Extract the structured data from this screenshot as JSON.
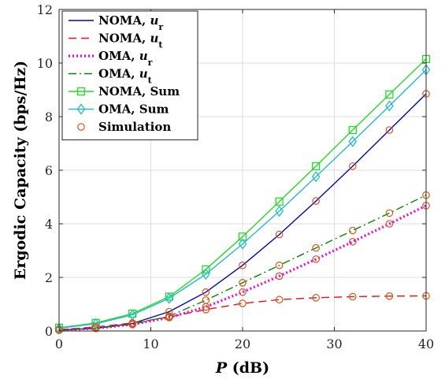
{
  "chart_data": {
    "type": "line",
    "xlabel": "P (dB)",
    "xlabel_parts": {
      "symbol": "P",
      "unit": " (dB)"
    },
    "ylabel": "Ergodic Capacity (bps/Hz)",
    "xlim": [
      0,
      40
    ],
    "ylim": [
      0,
      12
    ],
    "x_ticks": [
      0,
      10,
      20,
      30,
      40
    ],
    "y_ticks": [
      0,
      2,
      4,
      6,
      8,
      10,
      12
    ],
    "grid": true,
    "legend_position": "top-left",
    "series": [
      {
        "name": "NOMA, u_r",
        "label_prefix": "NOMA, ",
        "label_sym": "u",
        "label_sub": "r",
        "color": "#0000cc",
        "dash": "",
        "marker": "none",
        "x": [
          0,
          4,
          8,
          12,
          16,
          20,
          24,
          28,
          32,
          36,
          40
        ],
        "y": [
          0.03,
          0.1,
          0.28,
          0.72,
          1.45,
          2.45,
          3.6,
          4.85,
          6.15,
          7.5,
          8.85
        ]
      },
      {
        "name": "NOMA, u_t",
        "label_prefix": "NOMA, ",
        "label_sym": "u",
        "label_sub": "t",
        "color": "#ee1111",
        "dash": "10,6",
        "marker": "none",
        "x": [
          0,
          4,
          8,
          12,
          16,
          20,
          24,
          28,
          32,
          36,
          40
        ],
        "y": [
          0.05,
          0.15,
          0.3,
          0.52,
          0.8,
          1.03,
          1.17,
          1.24,
          1.28,
          1.3,
          1.31
        ]
      },
      {
        "name": "OMA, u_r",
        "label_prefix": "OMA, ",
        "label_sym": "u",
        "label_sub": "r",
        "color": "#ee00ee",
        "dash": "2,3",
        "width": 3.2,
        "marker": "none",
        "x": [
          0,
          4,
          8,
          12,
          16,
          20,
          24,
          28,
          32,
          36,
          40
        ],
        "y": [
          0.03,
          0.1,
          0.24,
          0.5,
          0.9,
          1.45,
          2.05,
          2.68,
          3.33,
          4.0,
          4.68
        ]
      },
      {
        "name": "OMA, u_t",
        "label_prefix": "OMA, ",
        "label_sym": "u",
        "label_sub": "t",
        "color": "#008800",
        "dash": "10,4,2,4",
        "marker": "none",
        "x": [
          0,
          4,
          8,
          12,
          16,
          20,
          24,
          28,
          32,
          36,
          40
        ],
        "y": [
          0.03,
          0.1,
          0.25,
          0.55,
          1.15,
          1.8,
          2.45,
          3.1,
          3.75,
          4.4,
          5.07
        ]
      },
      {
        "name": "NOMA, Sum",
        "label_prefix": "NOMA, Sum",
        "label_sym": "",
        "label_sub": "",
        "color": "#22dd22",
        "dash": "",
        "marker": "square",
        "x": [
          0,
          4,
          8,
          12,
          16,
          20,
          24,
          28,
          32,
          36,
          40
        ],
        "y": [
          0.12,
          0.3,
          0.65,
          1.28,
          2.3,
          3.52,
          4.83,
          6.15,
          7.5,
          8.83,
          10.15
        ]
      },
      {
        "name": "OMA, Sum",
        "label_prefix": "OMA, Sum",
        "label_sym": "",
        "label_sub": "",
        "color": "#22bbcc",
        "dash": "",
        "marker": "diamond",
        "x": [
          0,
          4,
          8,
          12,
          16,
          20,
          24,
          28,
          32,
          36,
          40
        ],
        "y": [
          0.1,
          0.27,
          0.6,
          1.22,
          2.12,
          3.25,
          4.47,
          5.76,
          7.07,
          8.4,
          9.75
        ]
      },
      {
        "name": "Simulation",
        "label_prefix": "Simulation",
        "label_sym": "",
        "label_sub": "",
        "color": "#dd5511",
        "dash": "",
        "marker": "circle",
        "line": false,
        "points": [
          [
            0,
            0.03
          ],
          [
            4,
            0.1
          ],
          [
            8,
            0.28
          ],
          [
            12,
            0.72
          ],
          [
            16,
            1.45
          ],
          [
            20,
            2.45
          ],
          [
            24,
            3.6
          ],
          [
            28,
            4.85
          ],
          [
            32,
            6.15
          ],
          [
            36,
            7.5
          ],
          [
            40,
            8.85
          ],
          [
            0,
            0.05
          ],
          [
            4,
            0.15
          ],
          [
            8,
            0.3
          ],
          [
            12,
            0.52
          ],
          [
            16,
            0.8
          ],
          [
            20,
            1.03
          ],
          [
            24,
            1.17
          ],
          [
            28,
            1.24
          ],
          [
            32,
            1.28
          ],
          [
            36,
            1.3
          ],
          [
            40,
            1.31
          ],
          [
            0,
            0.03
          ],
          [
            4,
            0.1
          ],
          [
            8,
            0.24
          ],
          [
            12,
            0.5
          ],
          [
            16,
            0.9
          ],
          [
            20,
            1.45
          ],
          [
            24,
            2.05
          ],
          [
            28,
            2.68
          ],
          [
            32,
            3.33
          ],
          [
            36,
            4.0
          ],
          [
            40,
            4.68
          ],
          [
            0,
            0.03
          ],
          [
            4,
            0.1
          ],
          [
            8,
            0.25
          ],
          [
            12,
            0.55
          ],
          [
            16,
            1.15
          ],
          [
            20,
            1.8
          ],
          [
            24,
            2.45
          ],
          [
            28,
            3.1
          ],
          [
            32,
            3.75
          ],
          [
            36,
            4.4
          ],
          [
            40,
            5.07
          ]
        ]
      }
    ]
  }
}
